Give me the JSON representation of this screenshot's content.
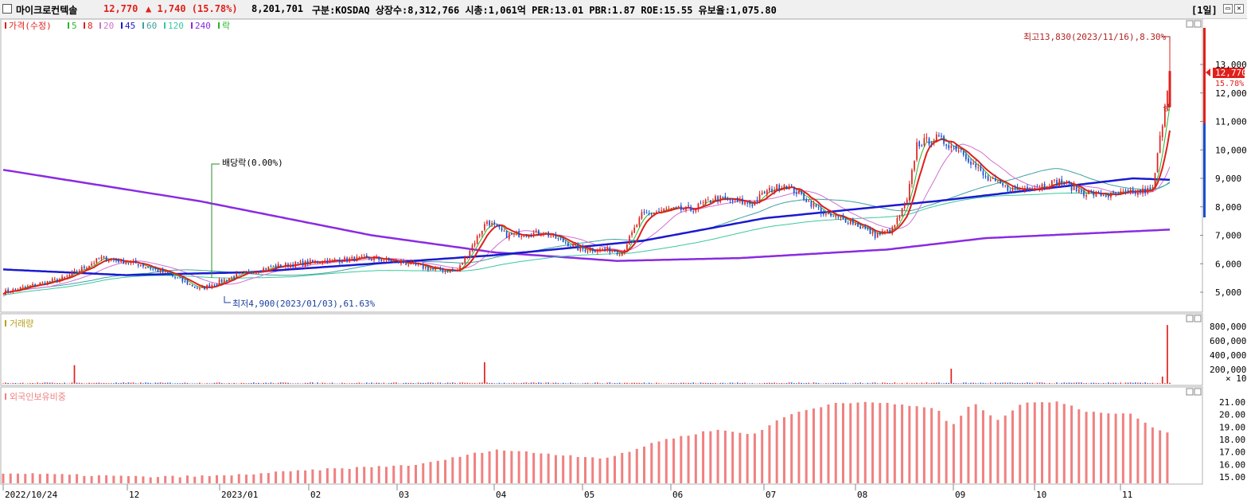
{
  "header": {
    "stock_name": "마이크로컨텍솔",
    "price": "12,770",
    "change": "▲ 1,740 (15.78%)",
    "volume": "8,201,701",
    "info": "구분:KOSDAQ 상장수:8,312,766 시총:1,061억 PER:13.01 PBR:1.87 ROE:15.55 유보율:1,075.80",
    "period": "[1일]",
    "colors": {
      "up": "#e0201c",
      "down": "#1a4fd0",
      "accent": "#e0201c"
    }
  },
  "icons": [
    "checkbox-icon",
    "minimize-icon",
    "close-icon"
  ],
  "price_panel": {
    "legend": [
      {
        "text": "가격(수정)",
        "color": "#e0201c"
      },
      {
        "text": "5",
        "color": "#2bb52b"
      },
      {
        "text": "8",
        "color": "#e0201c"
      },
      {
        "text": "20",
        "color": "#d070d0"
      },
      {
        "text": "45",
        "color": "#1a1ad0"
      },
      {
        "text": "60",
        "color": "#40a0a0"
      },
      {
        "text": "120",
        "color": "#38c8a0"
      },
      {
        "text": "240",
        "color": "#8a2be2"
      },
      {
        "text": "락",
        "color": "#2bb52b"
      }
    ],
    "y_ticks": [
      "13,000",
      "12,000",
      "11,000",
      "10,000",
      "9,000",
      "8,000",
      "7,000",
      "6,000",
      "5,000"
    ],
    "price_label": "12,770",
    "pct_label": "15.78%",
    "annot_high": "최고13,830(2023/11/16),8.30%",
    "annot_low": "최저4,900(2023/01/03),61.63%",
    "annot_div": "배당락(0.00%)",
    "annot_up": "상"
  },
  "volume_panel": {
    "legend": "거래량",
    "y_ticks": [
      "800,000",
      "600,000",
      "400,000",
      "200,000"
    ],
    "unit": "× 10"
  },
  "foreign_panel": {
    "legend": "외국인보유비중",
    "y_ticks": [
      "21.00",
      "20.00",
      "19.00",
      "18.00",
      "17.00",
      "16.00",
      "15.00"
    ]
  },
  "x_axis": {
    "labels": [
      "2022/10/24",
      "12",
      "2023/01",
      "02",
      "03",
      "04",
      "05",
      "06",
      "07",
      "08",
      "09",
      "10",
      "11"
    ]
  },
  "chart_data": {
    "type": "line",
    "title": "마이크로컨텍솔",
    "series": [
      {
        "name": "가격(수정)",
        "anchors": [
          [
            0,
            5000
          ],
          [
            10,
            5200
          ],
          [
            25,
            5500
          ],
          [
            40,
            6200
          ],
          [
            55,
            6000
          ],
          [
            68,
            5600
          ],
          [
            80,
            5100
          ],
          [
            95,
            5600
          ],
          [
            110,
            5900
          ],
          [
            130,
            6100
          ],
          [
            150,
            6200
          ],
          [
            165,
            6000
          ],
          [
            175,
            5800
          ],
          [
            185,
            5750
          ],
          [
            190,
            6500
          ],
          [
            197,
            7500
          ],
          [
            205,
            7000
          ],
          [
            220,
            7100
          ],
          [
            235,
            6500
          ],
          [
            245,
            6500
          ],
          [
            252,
            6400
          ],
          [
            260,
            7700
          ],
          [
            270,
            7900
          ],
          [
            280,
            7900
          ],
          [
            290,
            8300
          ],
          [
            305,
            8100
          ],
          [
            310,
            8500
          ],
          [
            318,
            8800
          ],
          [
            325,
            8400
          ],
          [
            335,
            7700
          ],
          [
            345,
            7500
          ],
          [
            355,
            7000
          ],
          [
            362,
            7200
          ],
          [
            368,
            8200
          ],
          [
            372,
            10200
          ],
          [
            380,
            10400
          ],
          [
            390,
            10000
          ],
          [
            400,
            9000
          ],
          [
            410,
            8600
          ],
          [
            420,
            8700
          ],
          [
            430,
            8900
          ],
          [
            440,
            8500
          ],
          [
            450,
            8400
          ],
          [
            460,
            8500
          ],
          [
            468,
            8600
          ],
          [
            472,
            11000
          ],
          [
            475,
            12770
          ]
        ]
      },
      {
        "name": "5",
        "note": "5일 이동평균"
      },
      {
        "name": "8",
        "note": "8일 이동평균"
      },
      {
        "name": "20",
        "note": "20일 이동평균"
      },
      {
        "name": "45",
        "anchors": [
          [
            0,
            5800
          ],
          [
            50,
            5600
          ],
          [
            100,
            5700
          ],
          [
            150,
            6000
          ],
          [
            200,
            6300
          ],
          [
            260,
            6800
          ],
          [
            310,
            7600
          ],
          [
            380,
            8200
          ],
          [
            430,
            8700
          ],
          [
            460,
            9000
          ],
          [
            475,
            8950
          ]
        ]
      },
      {
        "name": "60"
      },
      {
        "name": "120"
      },
      {
        "name": "240",
        "anchors": [
          [
            0,
            9300
          ],
          [
            80,
            8200
          ],
          [
            150,
            7000
          ],
          [
            200,
            6400
          ],
          [
            250,
            6100
          ],
          [
            300,
            6200
          ],
          [
            360,
            6500
          ],
          [
            400,
            6900
          ],
          [
            475,
            7200
          ]
        ]
      }
    ],
    "volume_spikes": [
      [
        29,
        260000
      ],
      [
        196,
        300000
      ],
      [
        386,
        210000
      ],
      [
        472,
        100000
      ],
      [
        474,
        820000
      ]
    ],
    "foreign_ratio_anchors": [
      [
        0,
        15.3
      ],
      [
        60,
        15.0
      ],
      [
        90,
        15.1
      ],
      [
        130,
        15.6
      ],
      [
        170,
        16.0
      ],
      [
        190,
        16.8
      ],
      [
        200,
        17.2
      ],
      [
        245,
        16.5
      ],
      [
        255,
        17.0
      ],
      [
        265,
        17.8
      ],
      [
        290,
        18.8
      ],
      [
        305,
        18.4
      ],
      [
        320,
        20.0
      ],
      [
        340,
        21.0
      ],
      [
        360,
        20.9
      ],
      [
        380,
        20.5
      ],
      [
        386,
        19.0
      ],
      [
        395,
        21.0
      ],
      [
        405,
        19.5
      ],
      [
        415,
        21.0
      ],
      [
        430,
        21.0
      ],
      [
        440,
        20.3
      ],
      [
        460,
        20.0
      ],
      [
        470,
        18.7
      ],
      [
        475,
        18.6
      ]
    ],
    "high": 13830,
    "low": 4900,
    "last": 12770
  }
}
